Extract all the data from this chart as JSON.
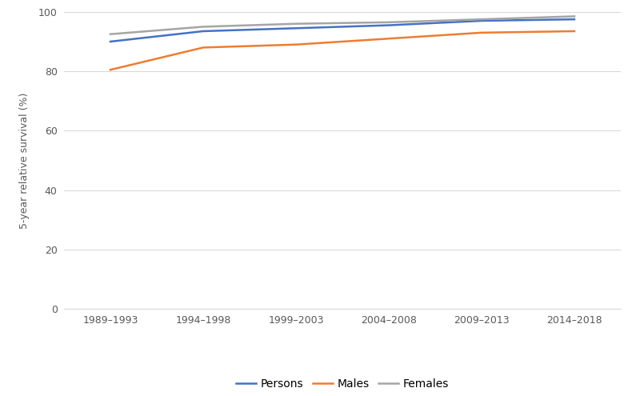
{
  "categories": [
    "1989–1993",
    "1994–1998",
    "1999–2003",
    "2004–2008",
    "2009–2013",
    "2014–2018"
  ],
  "persons": [
    90.0,
    93.5,
    94.5,
    95.5,
    97.0,
    97.5
  ],
  "males": [
    80.5,
    88.0,
    89.0,
    91.0,
    93.0,
    93.5
  ],
  "females": [
    92.5,
    95.0,
    96.0,
    96.5,
    97.5,
    98.5
  ],
  "persons_color": "#4472C4",
  "males_color": "#ED7D31",
  "females_color": "#A5A5A5",
  "ylabel": "5-year relative survival (%)",
  "ylim": [
    0,
    100
  ],
  "yticks": [
    0,
    20,
    40,
    60,
    80,
    100
  ],
  "line_width": 1.8,
  "legend_labels": [
    "Persons",
    "Males",
    "Females"
  ],
  "background_color": "#ffffff",
  "grid_color": "#d9d9d9",
  "xlabel_fontsize": 9,
  "ylabel_fontsize": 9,
  "tick_fontsize": 9
}
